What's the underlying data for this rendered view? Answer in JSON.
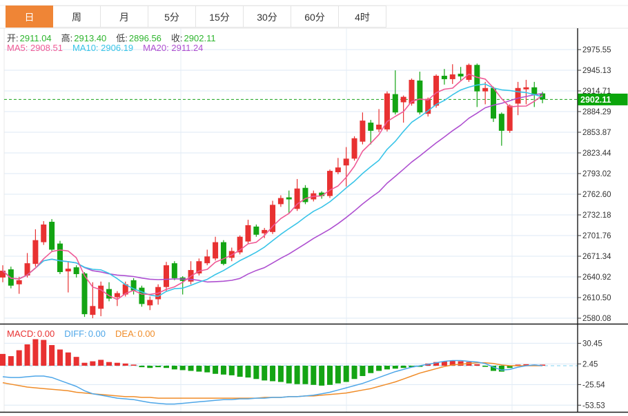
{
  "header": {
    "tabs": [
      {
        "label": "日",
        "active": true
      },
      {
        "label": "周",
        "active": false
      },
      {
        "label": "月",
        "active": false
      },
      {
        "label": "5分",
        "active": false
      },
      {
        "label": "15分",
        "active": false
      },
      {
        "label": "30分",
        "active": false
      },
      {
        "label": "60分",
        "active": false
      },
      {
        "label": "4时",
        "active": false
      }
    ]
  },
  "legend": {
    "ohlc": [
      {
        "label": "开:",
        "value": "2911.04"
      },
      {
        "label": "高:",
        "value": "2913.40"
      },
      {
        "label": "低:",
        "value": "2896.56"
      },
      {
        "label": "收:",
        "value": "2902.11"
      }
    ],
    "ma": [
      {
        "label": "MA5:",
        "value": "2908.51",
        "color_key": "ma5"
      },
      {
        "label": "MA10:",
        "value": "2906.19",
        "color_key": "ma10"
      },
      {
        "label": "MA20:",
        "value": "2911.24",
        "color_key": "ma20"
      }
    ],
    "macd": [
      {
        "label": "MACD:",
        "value": "0.00",
        "color_key": "up"
      },
      {
        "label": "DIFF:",
        "value": "0.00",
        "color_key": "diff"
      },
      {
        "label": "DEA:",
        "value": "0.00",
        "color_key": "dea"
      }
    ]
  },
  "chart_data": {
    "type": "candlestick",
    "title": "",
    "legend_position": "top-left",
    "grid": true,
    "price_panel": {
      "y_axis_labels": [
        "2975.55",
        "2945.13",
        "2914.71",
        "2884.29",
        "2853.87",
        "2823.44",
        "2793.02",
        "2762.60",
        "2732.18",
        "2701.76",
        "2671.34",
        "2640.92",
        "2610.50",
        "2580.08"
      ],
      "y_top_value": 2975.55,
      "y_bottom_value": 2580.08,
      "current_price": "2902.11",
      "current_price_value": 2902.11,
      "ma_periods": [
        5,
        10,
        20
      ],
      "candles_ohlc": [
        [
          2640,
          2658,
          2633,
          2650
        ],
        [
          2652,
          2656,
          2624,
          2628
        ],
        [
          2630,
          2641,
          2616,
          2636
        ],
        [
          2643,
          2676,
          2640,
          2661
        ],
        [
          2660,
          2711,
          2656,
          2695
        ],
        [
          2692,
          2723,
          2688,
          2718
        ],
        [
          2722,
          2726,
          2678,
          2681
        ],
        [
          2690,
          2694,
          2645,
          2648
        ],
        [
          2649,
          2664,
          2618,
          2653
        ],
        [
          2655,
          2658,
          2640,
          2645
        ],
        [
          2646,
          2648,
          2582,
          2586
        ],
        [
          2585,
          2633,
          2580,
          2598
        ],
        [
          2594,
          2634,
          2583,
          2628
        ],
        [
          2623,
          2633,
          2605,
          2609
        ],
        [
          2611,
          2620,
          2598,
          2617
        ],
        [
          2615,
          2634,
          2612,
          2630
        ],
        [
          2636,
          2639,
          2615,
          2621
        ],
        [
          2625,
          2628,
          2597,
          2601
        ],
        [
          2599,
          2612,
          2592,
          2607
        ],
        [
          2608,
          2630,
          2600,
          2626
        ],
        [
          2626,
          2663,
          2620,
          2658
        ],
        [
          2661,
          2664,
          2636,
          2639
        ],
        [
          2640,
          2642,
          2615,
          2635
        ],
        [
          2634,
          2664,
          2630,
          2651
        ],
        [
          2646,
          2668,
          2643,
          2664
        ],
        [
          2661,
          2681,
          2658,
          2671
        ],
        [
          2668,
          2700,
          2665,
          2692
        ],
        [
          2692,
          2695,
          2658,
          2660
        ],
        [
          2669,
          2684,
          2664,
          2679
        ],
        [
          2677,
          2702,
          2674,
          2700
        ],
        [
          2693,
          2725,
          2690,
          2717
        ],
        [
          2715,
          2718,
          2700,
          2703
        ],
        [
          2705,
          2713,
          2698,
          2710
        ],
        [
          2707,
          2753,
          2704,
          2747
        ],
        [
          2748,
          2761,
          2744,
          2757
        ],
        [
          2758,
          2768,
          2735,
          2755
        ],
        [
          2741,
          2785,
          2738,
          2771
        ],
        [
          2772,
          2776,
          2748,
          2751
        ],
        [
          2755,
          2768,
          2752,
          2764
        ],
        [
          2765,
          2767,
          2756,
          2760
        ],
        [
          2760,
          2799,
          2757,
          2797
        ],
        [
          2795,
          2816,
          2792,
          2802
        ],
        [
          2805,
          2832,
          2774,
          2815
        ],
        [
          2815,
          2848,
          2812,
          2845
        ],
        [
          2840,
          2883,
          2836,
          2871
        ],
        [
          2868,
          2872,
          2836,
          2856
        ],
        [
          2858,
          2888,
          2854,
          2865
        ],
        [
          2858,
          2914,
          2855,
          2911
        ],
        [
          2910,
          2945,
          2880,
          2883
        ],
        [
          2898,
          2908,
          2868,
          2906
        ],
        [
          2896,
          2933,
          2893,
          2931
        ],
        [
          2930,
          2943,
          2880,
          2883
        ],
        [
          2881,
          2905,
          2877,
          2903
        ],
        [
          2893,
          2939,
          2890,
          2937
        ],
        [
          2937,
          2947,
          2924,
          2932
        ],
        [
          2932,
          2954,
          2925,
          2939
        ],
        [
          2940,
          2950,
          2929,
          2936
        ],
        [
          2931,
          2955,
          2928,
          2953
        ],
        [
          2953,
          2955,
          2891,
          2914
        ],
        [
          2914,
          2928,
          2895,
          2919
        ],
        [
          2919,
          2921,
          2869,
          2874
        ],
        [
          2881,
          2883,
          2834,
          2856
        ],
        [
          2856,
          2895,
          2853,
          2893
        ],
        [
          2896,
          2928,
          2879,
          2919
        ],
        [
          2917,
          2931,
          2895,
          2920
        ],
        [
          2920,
          2928,
          2891,
          2909
        ],
        [
          2911.04,
          2913.4,
          2896.56,
          2902.11
        ]
      ]
    },
    "macd_panel": {
      "y_axis_labels": [
        "30.45",
        "2.45",
        "-25.54",
        "-53.53"
      ],
      "y_axis_values": [
        30.45,
        2.45,
        -25.54,
        -53.53
      ],
      "current_value": 0,
      "hist": [
        16,
        13,
        21,
        29,
        36,
        35,
        28,
        22,
        18,
        12,
        4,
        6,
        8,
        5,
        4,
        3,
        1,
        -2,
        -3,
        -2,
        -3,
        -5,
        -6,
        -7,
        -8,
        -9,
        -11,
        -12,
        -13,
        -15,
        -16,
        -18,
        -20,
        -21,
        -22,
        -24,
        -25,
        -25,
        -26,
        -27,
        -26,
        -24,
        -22,
        -18,
        -14,
        -10,
        -7,
        -5,
        -4,
        -3,
        -2,
        -1,
        3,
        5,
        6,
        7,
        6,
        5,
        2,
        -1,
        -7,
        -8,
        -3,
        1,
        2,
        1,
        0
      ],
      "diff": [
        -15,
        -16,
        -16,
        -15,
        -14,
        -14,
        -16,
        -20,
        -24,
        -28,
        -34,
        -38,
        -40,
        -42,
        -44,
        -45,
        -46,
        -48,
        -50,
        -51,
        -52,
        -52,
        -51,
        -50,
        -49,
        -48,
        -47,
        -46,
        -46,
        -45,
        -45,
        -44,
        -44,
        -43,
        -43,
        -42,
        -42,
        -41,
        -40,
        -38,
        -36,
        -33,
        -30,
        -27,
        -24,
        -20,
        -16,
        -12,
        -8,
        -5,
        -2,
        0,
        2,
        4,
        6,
        7,
        7,
        6,
        5,
        3,
        -2,
        -6,
        -5,
        -2,
        0,
        1,
        0
      ],
      "dea": [
        -23,
        -25,
        -27,
        -29,
        -30,
        -31,
        -32,
        -33,
        -34,
        -36,
        -37,
        -38,
        -39,
        -40,
        -41,
        -42,
        -42,
        -43,
        -43,
        -44,
        -44,
        -44,
        -44,
        -44,
        -44,
        -44,
        -44,
        -44,
        -44,
        -44,
        -44,
        -44,
        -43,
        -43,
        -43,
        -42,
        -42,
        -41,
        -41,
        -40,
        -39,
        -38,
        -37,
        -35,
        -33,
        -31,
        -28,
        -25,
        -22,
        -18,
        -14,
        -10,
        -7,
        -4,
        -1,
        1,
        2,
        3,
        4,
        4,
        3,
        1,
        0,
        0,
        0,
        0,
        0
      ]
    },
    "colors": {
      "accent": "#ef8536",
      "up": "#e83131",
      "down": "#13a413",
      "ma5": "#ef5a96",
      "ma10": "#38c4e8",
      "ma20": "#ae4fd0",
      "diff": "#4da6e8",
      "dea": "#f08c28",
      "ohlc_green": "#2db52d",
      "grid": "#dce8f4",
      "vgrid": "#e4edf6",
      "axis": "#1a1a1a",
      "axis_text": "#333333",
      "price_line": "#15a015",
      "tag_bg": "#0ba50b",
      "macd_zero_dash": "#7fd0f0"
    }
  }
}
